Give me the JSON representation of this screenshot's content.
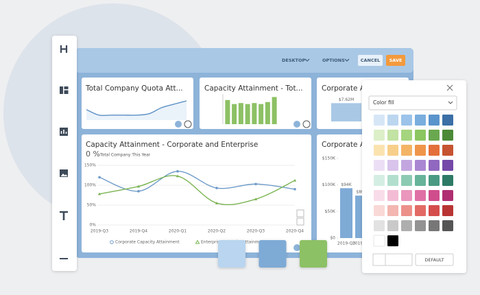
{
  "toolbar": {
    "view": "DESKTOP",
    "options": "OPTIONS",
    "cancel": "CANCEL",
    "save": "SAVE"
  },
  "chart_data": [
    {
      "type": "line",
      "title": "Total Company Quota Att...",
      "values": [
        38,
        18,
        18,
        18,
        18,
        23,
        45,
        58,
        70
      ],
      "ylim": [
        0,
        100
      ],
      "color": "#5b8fc4"
    },
    {
      "type": "bar",
      "title": "Capacity Attainment - Tot...",
      "values": [
        24000,
        20000,
        21000,
        20000,
        21000,
        20000,
        22000,
        27000
      ],
      "ylim": [
        0,
        30000
      ],
      "color": "#8dc165"
    },
    {
      "type": "bar",
      "title": "Corporate Av...",
      "values": [
        7620000
      ],
      "value_labels": [
        "$7.62M"
      ],
      "ylim": [
        0,
        8000000
      ],
      "color": "#a9c8e6"
    },
    {
      "type": "line",
      "title": "Capacity Attainment - Corporate and Enterprise",
      "kpi": {
        "value": 0,
        "label": "0 %"
      },
      "subtitle": "Total Company This Year",
      "categories": [
        "2019-Q3",
        "2019-Q4",
        "2020-Q1",
        "2020-Q2",
        "2020-Q3",
        "2020-Q4"
      ],
      "series": [
        {
          "name": "Corporate Capacity Attainment",
          "color": "#6f9bc9",
          "values": [
            120,
            85,
            135,
            93,
            103,
            90
          ]
        },
        {
          "name": "Enterprise Capacity Attainment",
          "color": "#7ab451",
          "values": [
            78,
            97,
            123,
            55,
            65,
            112
          ]
        }
      ],
      "ylim": [
        0,
        150
      ],
      "yticks": [
        {
          "value": 150,
          "label": "150%"
        },
        {
          "value": 100,
          "label": "100%"
        },
        {
          "value": 50,
          "label": "50%"
        },
        {
          "value": 0,
          "label": "0%"
        }
      ],
      "grid": true
    },
    {
      "type": "bar",
      "title": "Corporate Av...",
      "categories": [
        "2019-Q3",
        "2019-Q4"
      ],
      "values": [
        94000,
        80000
      ],
      "value_labels": [
        "$94K",
        "$80K"
      ],
      "ylim": [
        0,
        150000
      ],
      "yticks": [
        {
          "value": 150000,
          "label": "$150K"
        },
        {
          "value": 100000,
          "label": "$100K"
        },
        {
          "value": 50000,
          "label": "$50K"
        },
        {
          "value": 0,
          "label": "$0"
        }
      ],
      "color": "#7eaad6"
    }
  ],
  "selected_swatches": [
    "#b9d5ef",
    "#7eaad6",
    "#8dc165"
  ],
  "color_panel": {
    "dropdown": "Color fill",
    "palette": [
      [
        "#d6e6f7",
        "#bcd6f0",
        "#9cc3ea",
        "#7aaede",
        "#5a94cc",
        "#3b6fa6"
      ],
      [
        "#dcefc8",
        "#c2e3a3",
        "#a5d57e",
        "#8bc660",
        "#6aa84f",
        "#4c8a37"
      ],
      [
        "#fbe3b0",
        "#f8cf8a",
        "#f4b466",
        "#ef954a",
        "#e3703b",
        "#c65331"
      ],
      [
        "#ecdff5",
        "#d9c4ec",
        "#c3a6e0",
        "#aa87d2",
        "#9168c0",
        "#7448a8"
      ],
      [
        "#d5eee4",
        "#b2dfcd",
        "#8ccab3",
        "#67b39a",
        "#4a9a82",
        "#2e7a66"
      ],
      [
        "#f9dce9",
        "#f3bcd5",
        "#ea96bd",
        "#df70a5",
        "#cf4d8c",
        "#b02f71"
      ],
      [
        "#f9d9d6",
        "#f3b6b0",
        "#ec908a",
        "#e26a65",
        "#d44d4c",
        "#b83534"
      ],
      [
        "#e2e2e2",
        "#c9c9c9",
        "#aeaeae",
        "#939393",
        "#777777",
        "#555555"
      ]
    ],
    "extra": [
      "#ffffff",
      "#000000"
    ],
    "button": "DEFAULT"
  }
}
